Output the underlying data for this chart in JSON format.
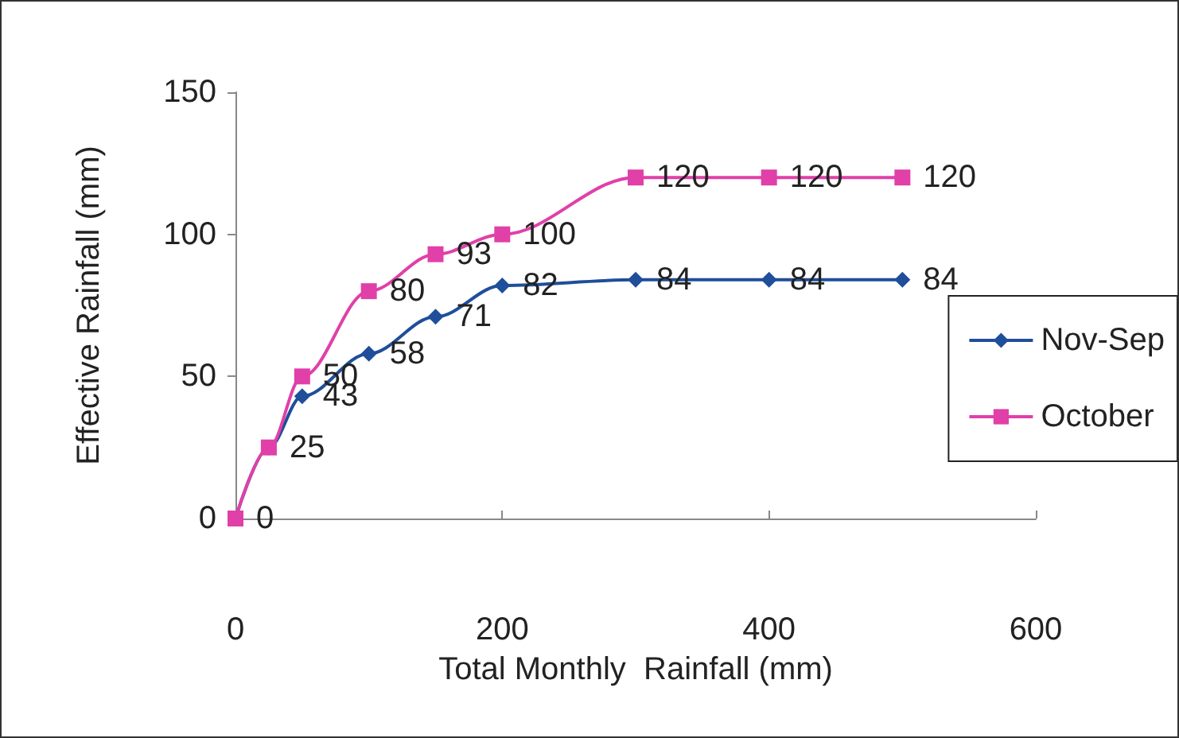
{
  "chart_data": {
    "type": "line",
    "xlabel": "Total Monthly  Rainfall (mm)",
    "ylabel": "Effective Rainfall (mm)",
    "x": [
      0,
      25,
      50,
      100,
      150,
      200,
      300,
      400,
      500
    ],
    "series": [
      {
        "name": "Nov-Sep",
        "color": "#1f4e9a",
        "marker": "diamond",
        "values": [
          0,
          25,
          43,
          58,
          71,
          82,
          84,
          84,
          84
        ],
        "value_labels": [
          "0",
          "25",
          "43",
          "58",
          "71",
          "82",
          "84",
          "84",
          "84"
        ]
      },
      {
        "name": "October",
        "color": "#e040a8",
        "marker": "square",
        "values": [
          0,
          25,
          50,
          80,
          93,
          100,
          120,
          120,
          120
        ],
        "value_labels": [
          null,
          null,
          "50",
          "80",
          "93",
          "100",
          "120",
          "120",
          "120"
        ]
      }
    ],
    "xlim": [
      0,
      600
    ],
    "xticks": [
      0,
      200,
      400,
      600
    ],
    "ylim": [
      0,
      150
    ],
    "yticks": [
      0,
      50,
      100,
      150
    ],
    "grid": false,
    "legend": "right"
  }
}
